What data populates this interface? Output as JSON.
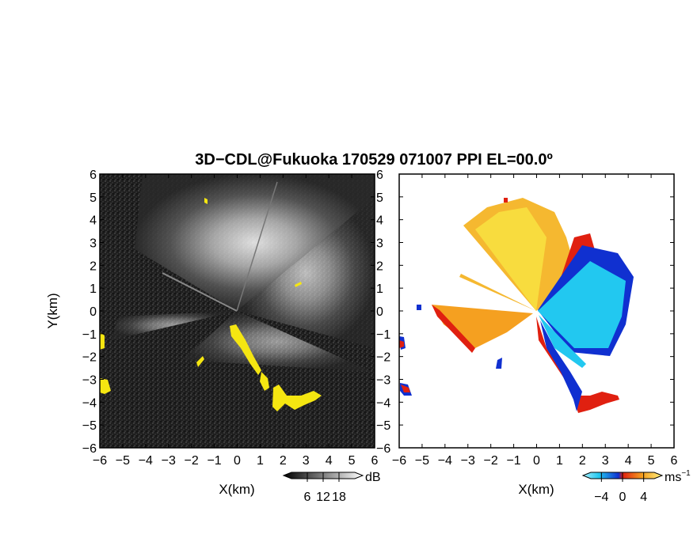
{
  "title": "3D−CDL@Fukuoka 170529 071007 PPI EL=00.0º",
  "colors": {
    "background_dark": "#202020",
    "echo_yellow": "#f5e611",
    "doppler_blue_dark": "#1030d0",
    "doppler_cyan": "#22c8f0",
    "doppler_orange": "#f5a020",
    "doppler_red": "#e02010",
    "doppler_yellow": "#f8e040"
  },
  "chart_data": [
    {
      "type": "heatmap",
      "name": "snr-ppi",
      "xlabel": "X(km)",
      "ylabel": "Y(km)",
      "xlim": [
        -6,
        6
      ],
      "ylim": [
        -6,
        6
      ],
      "xticks": [
        "−6",
        "−5",
        "−4",
        "−3",
        "−2",
        "−1",
        "0",
        "1",
        "2",
        "3",
        "4",
        "5",
        "6"
      ],
      "yticks": [
        "−6",
        "−5",
        "−4",
        "−3",
        "−2",
        "−1",
        "0",
        "1",
        "2",
        "3",
        "4",
        "5",
        "6"
      ],
      "colorbar": {
        "unit": "dB",
        "ticks": [
          "6",
          "12",
          "18"
        ],
        "range": [
          0,
          24
        ]
      }
    },
    {
      "type": "heatmap",
      "name": "doppler-ppi",
      "xlabel": "X(km)",
      "ylabel": "",
      "xlim": [
        -6,
        6
      ],
      "ylim": [
        -6,
        6
      ],
      "xticks": [
        "−6",
        "−5",
        "−4",
        "−3",
        "−2",
        "−1",
        "0",
        "1",
        "2",
        "3",
        "4",
        "5",
        "6"
      ],
      "yticks": [
        "−6",
        "−5",
        "−4",
        "−3",
        "−2",
        "−1",
        "0",
        "1",
        "2",
        "3",
        "4",
        "5",
        "6"
      ],
      "colorbar": {
        "unit": "ms",
        "unit_exp": "−1",
        "ticks": [
          "−4",
          "0",
          "4"
        ],
        "range": [
          -6,
          6
        ]
      }
    }
  ]
}
